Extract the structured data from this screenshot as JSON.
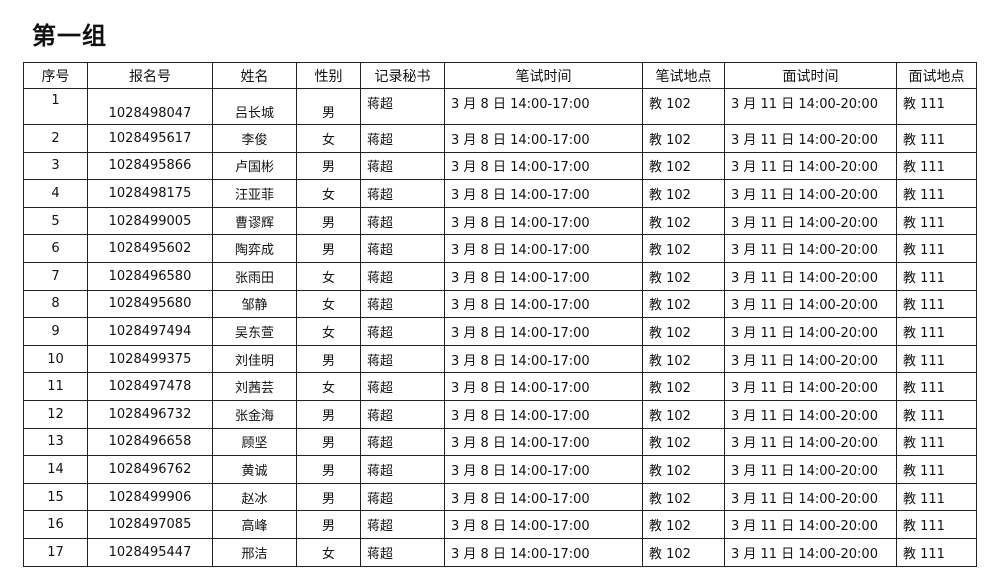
{
  "title": "第一组",
  "headers": [
    "序号",
    "报名号",
    "姓名",
    "性别",
    "记录秘书",
    "笔试时间",
    "笔试地点",
    "面试时间",
    "面试地点"
  ],
  "rows": [
    [
      "1",
      "1028498047",
      "吕长城",
      "男",
      "蒋超",
      "3 月 8 日  14:00-17:00",
      "教 102",
      "3 月 11  日 14:00-20:00",
      "教 111"
    ],
    [
      "2",
      "1028495617",
      "李俊",
      "女",
      "蒋超",
      "3 月 8 日 14:00-17:00",
      "教 102",
      "3 月 11 日 14:00-20:00",
      "教 111"
    ],
    [
      "3",
      "1028495866",
      "卢国彬",
      "男",
      "蒋超",
      "3 月 8 日 14:00-17:00",
      "教 102",
      "3 月 11 日 14:00-20:00",
      "教 111"
    ],
    [
      "4",
      "1028498175",
      "汪亚菲",
      "女",
      "蒋超",
      "3 月 8 日 14:00-17:00",
      "教 102",
      "3 月 11 日 14:00-20:00",
      "教 111"
    ],
    [
      "5",
      "1028499005",
      "曹谬辉",
      "男",
      "蒋超",
      "3 月 8 日 14:00-17:00",
      "教 102",
      "3 月 11 日 14:00-20:00",
      "教 111"
    ],
    [
      "6",
      "1028495602",
      "陶弈成",
      "男",
      "蒋超",
      "3 月 8 日 14:00-17:00",
      "教 102",
      "3 月 11 日 14:00-20:00",
      "教 111"
    ],
    [
      "7",
      "1028496580",
      "张雨田",
      "女",
      "蒋超",
      "3 月 8 日 14:00-17:00",
      "教 102",
      "3 月 11 日 14:00-20:00",
      "教 111"
    ],
    [
      "8",
      "1028495680",
      "邹静",
      "女",
      "蒋超",
      "3 月 8 日 14:00-17:00",
      "教 102",
      "3 月 11 日 14:00-20:00",
      "教 111"
    ],
    [
      "9",
      "1028497494",
      "吴东萱",
      "女",
      "蒋超",
      "3 月 8 日 14:00-17:00",
      "教 102",
      "3 月 11 日 14:00-20:00",
      "教 111"
    ],
    [
      "10",
      "1028499375",
      "刘佳明",
      "男",
      "蒋超",
      "3 月 8 日  14:00-17:00",
      "教 102",
      "3 月 11  日 14:00-20:00",
      "教 111"
    ],
    [
      "11",
      "1028497478",
      "刘茜芸",
      "女",
      "蒋超",
      "3 月 8 日  14:00-17:00",
      "教 102",
      "3 月 11 日 14:00-20:00",
      "教 111"
    ],
    [
      "12",
      "1028496732",
      "张金海",
      "男",
      "蒋超",
      "3 月 8 日 14:00-17:00",
      "教 102",
      "3 月 11 日 14:00-20:00",
      "教 111"
    ],
    [
      "13",
      "1028496658",
      "顾坚",
      "男",
      "蒋超",
      "3 月 8 日 14:00-17:00",
      "教 102",
      "3 月 11 日 14:00-20:00",
      "教 111"
    ],
    [
      "14",
      "1028496762",
      "黄诚",
      "男",
      "蒋超",
      "3 月 8 日 14:00-17:00",
      "教 102",
      "3 月 11 日 14:00-20:00",
      "教 111"
    ],
    [
      "15",
      "1028499906",
      "赵冰",
      "男",
      "蒋超",
      "3 月 8 日 14:00-17:00",
      "教 102",
      "3 月 11 日 14:00-20:00",
      "教 111"
    ],
    [
      "16",
      "1028497085",
      "高峰",
      "男",
      "蒋超",
      "3 月 8 日 14:00-17:00",
      "教 102",
      "3 月 11 日 14:00-20:00",
      "教 111"
    ],
    [
      "17",
      "1028495447",
      "邢洁",
      "女",
      "蒋超",
      "3 月 8 日 14:00-17:00",
      "教 102",
      "3 月 11 日 14:00-20:00",
      "教 111"
    ]
  ]
}
